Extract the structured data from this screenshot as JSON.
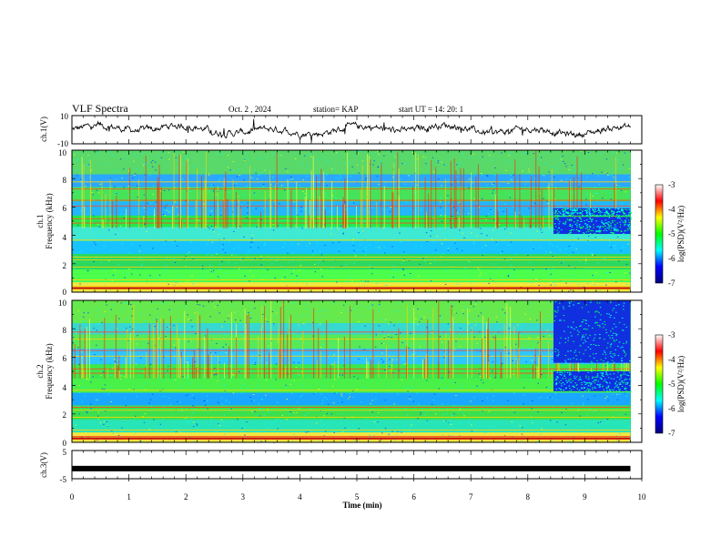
{
  "header": {
    "title": "VLF Spectra",
    "date": "Oct. 2 , 2024",
    "station": "station= KAP",
    "start": "start UT =  14: 20: 1"
  },
  "chart_data": [
    {
      "type": "line",
      "panel": "ch1-waveform",
      "ylabel": "ch.1(V)",
      "ylim": [
        -10,
        10
      ],
      "xlim": [
        0,
        10
      ],
      "ytick_labels": [
        "10",
        "-10"
      ],
      "approx_mean": 0,
      "approx_amplitude": 4,
      "x_end": 9.8
    },
    {
      "type": "heatmap",
      "panel": "ch1-spectrogram",
      "ylabel": "ch.1",
      "ylabel2": "Frequency (kHz)",
      "ylim": [
        0,
        10
      ],
      "xlim": [
        0,
        10
      ],
      "ytick_labels": [
        "0",
        "2",
        "4",
        "6",
        "8",
        "10"
      ],
      "x_end": 9.8,
      "colorbar": {
        "label": "log(PSD)(V²/Hz)",
        "range": [
          -7,
          -3
        ],
        "tick_labels": [
          "-3",
          "-4",
          "-5",
          "-6",
          "-7"
        ],
        "colors": [
          "#00007f",
          "#0000ff",
          "#00ffff",
          "#00ff00",
          "#ffff00",
          "#ff0000",
          "#ffffff"
        ]
      }
    },
    {
      "type": "heatmap",
      "panel": "ch2-spectrogram",
      "ylabel": "ch.2",
      "ylabel2": "Frequency (kHz)",
      "ylim": [
        0,
        10
      ],
      "xlim": [
        0,
        10
      ],
      "ytick_labels": [
        "0",
        "2",
        "4",
        "6",
        "8",
        "10"
      ],
      "x_end": 9.8,
      "colorbar": {
        "label": "log(PSD)(V²/Hz)",
        "range": [
          -7,
          -3
        ],
        "tick_labels": [
          "-3",
          "-4",
          "-5",
          "-6",
          "-7"
        ],
        "colors": [
          "#00007f",
          "#0000ff",
          "#00ffff",
          "#00ff00",
          "#ffff00",
          "#ff0000",
          "#ffffff"
        ]
      }
    },
    {
      "type": "line",
      "panel": "ch3-waveform",
      "ylabel": "ch.3(V)",
      "ylim": [
        -5,
        5
      ],
      "xlim": [
        0,
        10
      ],
      "ytick_labels": [
        "5",
        "-5"
      ],
      "approx_value": -1.4,
      "x_end": 9.8,
      "xlabel": "Time (min)",
      "xtick_labels": [
        "0",
        "1",
        "2",
        "3",
        "4",
        "5",
        "6",
        "7",
        "8",
        "9",
        "10"
      ]
    }
  ]
}
